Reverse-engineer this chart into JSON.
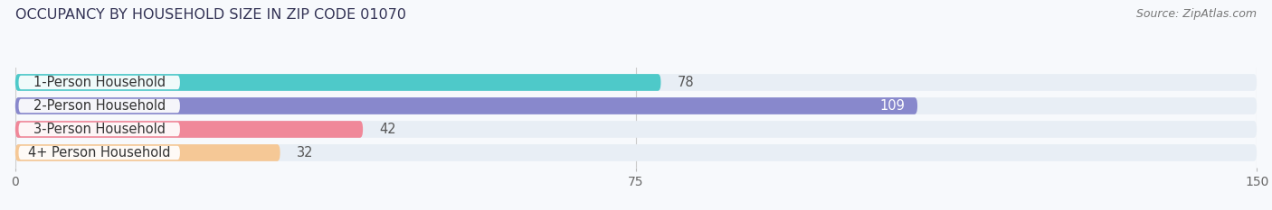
{
  "title": "OCCUPANCY BY HOUSEHOLD SIZE IN ZIP CODE 01070",
  "source": "Source: ZipAtlas.com",
  "categories": [
    "1-Person Household",
    "2-Person Household",
    "3-Person Household",
    "4+ Person Household"
  ],
  "values": [
    78,
    109,
    42,
    32
  ],
  "bar_colors": [
    "#4ec9c9",
    "#8888cc",
    "#f08899",
    "#f5c896"
  ],
  "bar_bg_color": "#e8eef5",
  "xlim": [
    0,
    150
  ],
  "xticks": [
    0,
    75,
    150
  ],
  "background_color": "#f7f9fc",
  "title_color": "#333355",
  "title_fontsize": 11.5,
  "label_fontsize": 10.5,
  "value_fontsize": 10.5,
  "source_fontsize": 9
}
